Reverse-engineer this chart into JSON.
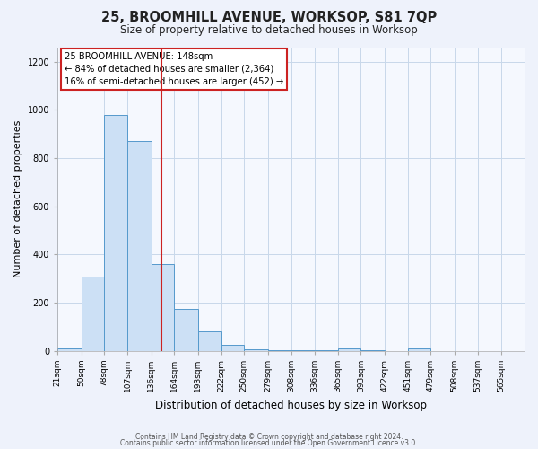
{
  "title": "25, BROOMHILL AVENUE, WORKSOP, S81 7QP",
  "subtitle": "Size of property relative to detached houses in Worksop",
  "xlabel": "Distribution of detached houses by size in Worksop",
  "ylabel": "Number of detached properties",
  "bins": [
    21,
    50,
    78,
    107,
    136,
    164,
    193,
    222,
    250,
    279,
    308,
    336,
    365,
    393,
    422,
    451,
    479,
    508,
    537,
    565,
    594
  ],
  "counts": [
    10,
    310,
    980,
    870,
    360,
    175,
    80,
    25,
    8,
    3,
    2,
    2,
    10,
    1,
    0,
    12,
    0,
    0,
    0,
    0
  ],
  "bar_facecolor": "#cce0f5",
  "bar_edgecolor": "#5599cc",
  "property_size": 148,
  "vline_color": "#cc2222",
  "annotation_title": "25 BROOMHILL AVENUE: 148sqm",
  "annotation_line1": "← 84% of detached houses are smaller (2,364)",
  "annotation_line2": "16% of semi-detached houses are larger (452) →",
  "annotation_box_edgecolor": "#cc2222",
  "annotation_box_facecolor": "#ffffff",
  "yticks": [
    0,
    200,
    400,
    600,
    800,
    1000,
    1200
  ],
  "ylim": [
    0,
    1260
  ],
  "footer1": "Contains HM Land Registry data © Crown copyright and database right 2024.",
  "footer2": "Contains public sector information licensed under the Open Government Licence v3.0.",
  "bg_color": "#eef2fb",
  "plot_bg_color": "#f5f8fe",
  "grid_color": "#c8d8ea",
  "title_fontsize": 10.5,
  "subtitle_fontsize": 8.5,
  "ylabel_fontsize": 8,
  "xlabel_fontsize": 8.5,
  "tick_fontsize": 6.5,
  "footer_fontsize": 5.5
}
